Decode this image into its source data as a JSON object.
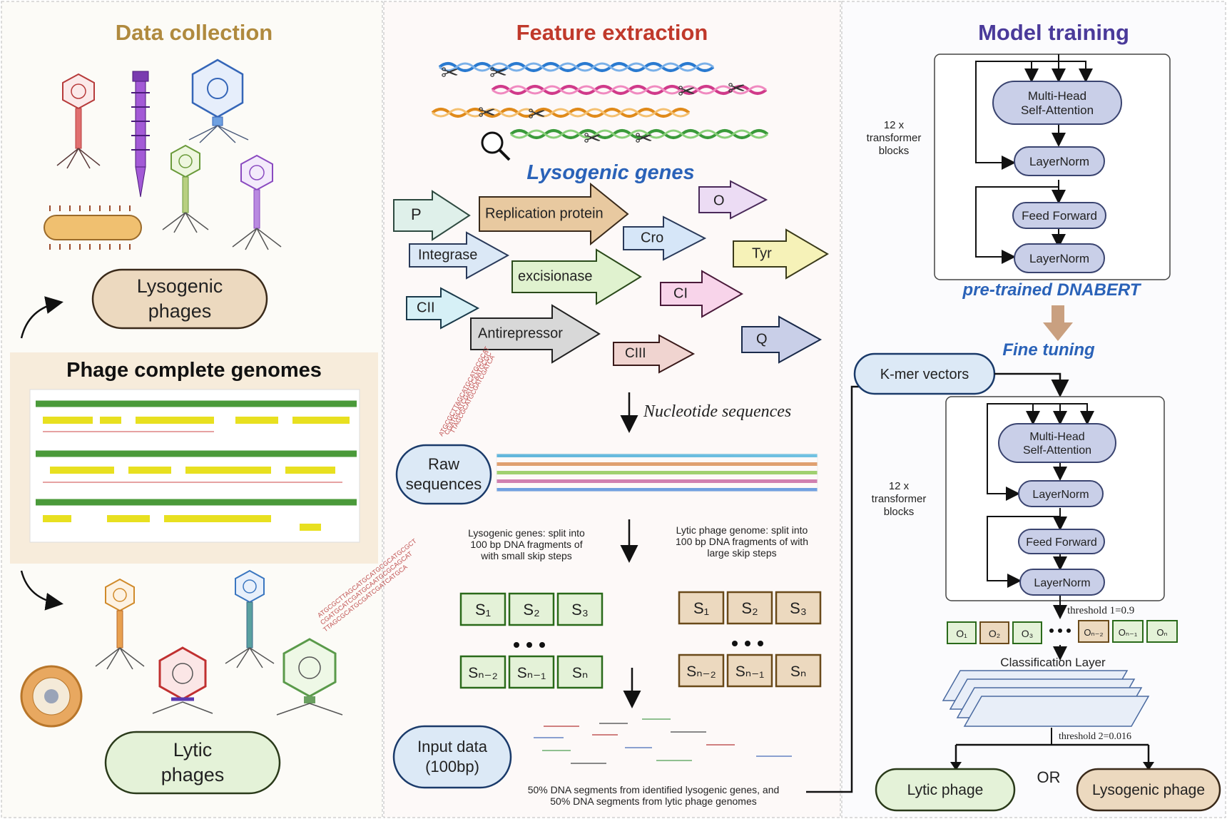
{
  "sections": {
    "data_collection": {
      "title": "Data collection",
      "color": "#b08a3e"
    },
    "feature_extraction": {
      "title": "Feature extraction",
      "color": "#c0392b"
    },
    "model_training": {
      "title": "Model training",
      "color": "#4a3a9a"
    }
  },
  "data_collection": {
    "lysogenic_phages": "Lysogenic phages",
    "lysogenic_line1": "Lysogenic",
    "lysogenic_line2": "phages",
    "genomes_title": "Phage complete genomes",
    "lytic_line1": "Lytic",
    "lytic_line2": "phages"
  },
  "feature_extraction": {
    "lysogenic_genes_label": "Lysogenic genes",
    "genes": [
      "P",
      "Replication protein",
      "O",
      "Integrase",
      "Cro",
      "Tyr",
      "excisionase",
      "CI",
      "CII",
      "Antirepressor",
      "CIII",
      "Q"
    ],
    "nucleotide_sequences": "Nucleotide sequences",
    "raw_line1": "Raw",
    "raw_line2": "sequences",
    "lysogenic_split": [
      "Lysogenic genes: split into",
      "100 bp DNA fragments of",
      "with small skip steps"
    ],
    "lytic_split": [
      "Lytic phage genome: split into",
      "100 bp DNA fragments of with",
      "large skip steps"
    ],
    "fragments_top": [
      "S₁",
      "S₂",
      "S₃"
    ],
    "fragments_bottom": [
      "Sₙ₋₂",
      "Sₙ₋₁",
      "Sₙ"
    ],
    "input_line1": "Input data",
    "input_line2": "(100bp)",
    "input_note": [
      "50% DNA segments from identified lysogenic genes, and",
      "50% DNA segments from lytic phage genomes"
    ]
  },
  "model_training": {
    "multi_head_line1": "Multi-Head",
    "multi_head_line2": "Self-Attention",
    "layernorm": "LayerNorm",
    "feed_forward": "Feed Forward",
    "blocks_label": [
      "12 x",
      "transformer",
      "blocks"
    ],
    "pretrained": "pre-trained DNABERT",
    "fine_tuning": "Fine tuning",
    "kmer": "K-mer vectors",
    "threshold1": "threshold 1=0.9",
    "outputs": [
      "O₁",
      "O₂",
      "O₃",
      "Oₙ₋₂",
      "Oₙ₋₁",
      "Oₙ"
    ],
    "classification_layer": "Classification Layer",
    "threshold2": "threshold 2=0.016",
    "lytic_phage": "Lytic phage",
    "or": "OR",
    "lysogenic_phage": "Lysogenic phage"
  },
  "colors": {
    "tan_fill": "#ecd9bf",
    "tan_stroke": "#7a5a2a",
    "green_fill": "#e4f2d8",
    "green_stroke": "#4f8a3a",
    "blue_fill": "#dce9f6",
    "blue_stroke": "#2f5e8e",
    "node_fill": "#c9cfe8",
    "node_stroke": "#3a4470",
    "subtitle_blue": "#2a62b8"
  }
}
